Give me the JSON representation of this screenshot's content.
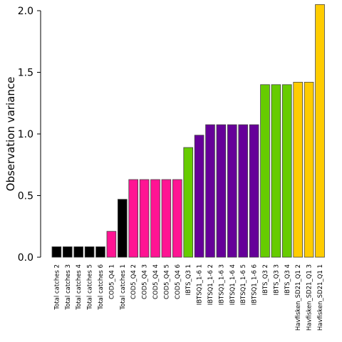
{
  "chart_data": {
    "type": "bar",
    "title": "",
    "xlabel": "",
    "ylabel": "Observation variance",
    "ylim": [
      0,
      2.0
    ],
    "yticks": [
      "0.0",
      "0.5",
      "1.0",
      "1.5",
      "2.0"
    ],
    "ytick_values": [
      0,
      0.5,
      1.0,
      1.5,
      2.0
    ],
    "grid": false,
    "legend": "none",
    "categories": [
      "Total catches 2",
      "Total catches 3",
      "Total catches 4",
      "Total catches 5",
      "Total catches 6",
      "COD5_Q4 1",
      "Total catches 1",
      "COD5_Q4 2",
      "COD5_Q4 3",
      "COD5_Q4 4",
      "COD5_Q4 5",
      "COD5_Q4 6",
      "IBTS_Q3 1",
      "IBTSQ1_1-6 1",
      "IBTSQ1_1-6 2",
      "IBTSQ1_1-6 3",
      "IBTSQ1_1-6 4",
      "IBTSQ1_1-6 5",
      "IBTSQ1_1-6 6",
      "IBTS_Q3 2",
      "IBTS_Q3 3",
      "IBTS_Q3 4",
      "Havfisken_SD21_Q1 2",
      "Havfisken_SD21_Q1 3",
      "Havfisken_SD21_Q1 1"
    ],
    "values": [
      0.085,
      0.085,
      0.085,
      0.085,
      0.085,
      0.21,
      0.47,
      0.63,
      0.63,
      0.63,
      0.63,
      0.63,
      0.89,
      0.99,
      1.075,
      1.075,
      1.075,
      1.075,
      1.075,
      1.4,
      1.4,
      1.4,
      1.42,
      1.42,
      2.05
    ],
    "colors": [
      "#000000",
      "#000000",
      "#000000",
      "#000000",
      "#000000",
      "#FF1493",
      "#000000",
      "#FF1493",
      "#FF1493",
      "#FF1493",
      "#FF1493",
      "#FF1493",
      "#66CC00",
      "#660099",
      "#660099",
      "#660099",
      "#660099",
      "#660099",
      "#660099",
      "#66CC00",
      "#66CC00",
      "#66CC00",
      "#FFCC00",
      "#FFCC00",
      "#FFCC00"
    ],
    "bar_outline": "#444444"
  }
}
